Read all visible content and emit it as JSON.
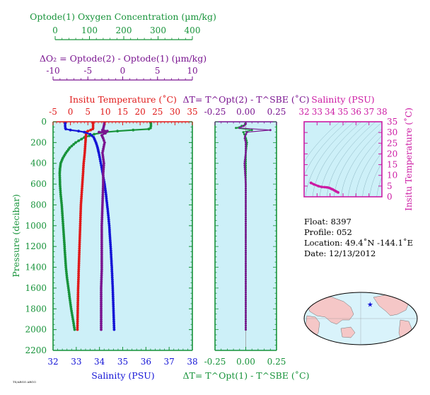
{
  "colors": {
    "green": "#17933a",
    "red": "#e01a1a",
    "blue": "#1414d6",
    "purple": "#7a1590",
    "magenta": "#cc1ba3",
    "panel_bg": "#cdf0f8",
    "land": "#f5c7c7",
    "ocean": "#d9f3fb"
  },
  "labels": {
    "oxygen_title": "Optode(1) Oxygen Concentration (µm/kg)",
    "do2_title": "ΔO₂ = Optode(2) - Optode(1)     (µm/kg)",
    "temp_title": "Insitu Temperature (˚C)",
    "dt_top_title": "ΔT= T^Opt(2) - T^SBE (˚C)",
    "dt_bottom_title": "ΔT= T^Opt(1) - T^SBE (˚C)",
    "salinity_bottom_title": "Salinity (PSU)",
    "pressure_title": "Pressure (decibar)",
    "ts_salinity_title": "Salinity (PSU)",
    "ts_temp_title": "Insitu Temperature (˚C)",
    "tiny_footer": "TS/ARGO ARGO"
  },
  "info": {
    "float": "Float:  8397",
    "profile": "Profile:  052",
    "location": "Location:  49.4˚N  -144.1˚E",
    "date": "Date:  12/13/2012"
  },
  "chart_data": [
    {
      "type": "line",
      "name": "profile-panel",
      "y_axis": {
        "label": "Pressure (decibar)",
        "range": [
          2200,
          0
        ],
        "ticks": [
          0,
          200,
          400,
          600,
          800,
          1000,
          1200,
          1400,
          1600,
          1800,
          2000,
          2200
        ]
      },
      "axes": {
        "oxygen": {
          "label": "Optode(1) Oxygen Concentration (µm/kg)",
          "range": [
            0,
            400
          ],
          "ticks": [
            0,
            100,
            200,
            300,
            400
          ]
        },
        "do2": {
          "label": "ΔO₂ = Optode(2) - Optode(1) (µm/kg)",
          "range": [
            -10,
            10
          ],
          "ticks": [
            -10,
            -5,
            0,
            5,
            10
          ]
        },
        "temperature": {
          "label": "Insitu Temperature (˚C)",
          "range": [
            -5,
            35
          ],
          "ticks": [
            -5,
            0,
            5,
            10,
            15,
            20,
            25,
            30,
            35
          ]
        },
        "salinity": {
          "label": "Salinity (PSU)",
          "range": [
            32,
            38
          ],
          "ticks": [
            32,
            33,
            34,
            35,
            36,
            37,
            38
          ]
        }
      },
      "series": [
        {
          "key": "oxygen",
          "axis": "oxygen",
          "color": "#17933a",
          "pressure": [
            5,
            20,
            40,
            60,
            70,
            80,
            90,
            100,
            120,
            150,
            200,
            250,
            300,
            350,
            400,
            450,
            500,
            600,
            700,
            800,
            900,
            1000,
            1200,
            1400,
            1500,
            1600,
            1700,
            1800,
            1900,
            2000
          ],
          "values": [
            280,
            281,
            281,
            280,
            275,
            230,
            185,
            150,
            118,
            90,
            65,
            48,
            37,
            28,
            22,
            20,
            19,
            20,
            22,
            25,
            27,
            29,
            33,
            37,
            40,
            44,
            48,
            52,
            57,
            62
          ]
        },
        {
          "key": "temperature",
          "axis": "temperature",
          "color": "#e01a1a",
          "pressure": [
            5,
            20,
            40,
            60,
            70,
            80,
            90,
            100,
            120,
            150,
            200,
            300,
            400,
            500,
            600,
            700,
            800,
            900,
            1000,
            1200,
            1400,
            1600,
            1800,
            2000
          ],
          "values": [
            6.5,
            6.5,
            6.5,
            6.5,
            6.4,
            5.8,
            5.0,
            4.6,
            4.5,
            4.4,
            4.3,
            4.1,
            3.8,
            3.6,
            3.4,
            3.2,
            3.0,
            2.9,
            2.8,
            2.6,
            2.4,
            2.2,
            2.1,
            2.0
          ]
        },
        {
          "key": "salinity",
          "axis": "salinity",
          "color": "#1414d6",
          "pressure": [
            5,
            20,
            40,
            60,
            70,
            80,
            90,
            100,
            120,
            150,
            200,
            250,
            300,
            400,
            500,
            600,
            700,
            800,
            900,
            1000,
            1200,
            1400,
            1600,
            1800,
            2000
          ],
          "values": [
            32.52,
            32.52,
            32.52,
            32.53,
            32.55,
            32.75,
            33.1,
            33.35,
            33.6,
            33.75,
            33.85,
            33.92,
            33.97,
            34.06,
            34.14,
            34.22,
            34.28,
            34.33,
            34.38,
            34.42,
            34.48,
            34.53,
            34.57,
            34.6,
            34.63
          ]
        },
        {
          "key": "do2",
          "axis": "do2",
          "color": "#7a1590",
          "pressure": [
            5,
            40,
            70,
            80,
            90,
            100,
            110,
            130,
            160,
            200,
            300,
            400,
            500,
            600,
            800,
            1000,
            1200,
            1400,
            1600,
            1800,
            2000
          ],
          "values": [
            -2.6,
            -2.7,
            -2.8,
            -2.9,
            -2.2,
            -3.4,
            -2.5,
            -3.0,
            -2.8,
            -2.6,
            -2.9,
            -2.7,
            -2.8,
            -2.8,
            -2.9,
            -3.0,
            -3.0,
            -3.0,
            -3.1,
            -3.1,
            -3.1
          ]
        }
      ]
    },
    {
      "type": "line",
      "name": "delta-t-panel",
      "x_axis": {
        "range": [
          -0.25,
          0.25
        ],
        "ticks": [
          -0.25,
          0,
          0.25
        ]
      },
      "y_axis": {
        "range": [
          2200,
          0
        ]
      },
      "series": [
        {
          "key": "dt_opt1",
          "color": "#17933a",
          "pressure": [
            5,
            30,
            60,
            80,
            100,
            150,
            200,
            300,
            400,
            600,
            800,
            1000,
            1200,
            1400,
            1600,
            1800,
            2000
          ],
          "values": [
            0.0,
            -0.01,
            -0.08,
            0.05,
            -0.02,
            0.0,
            0.01,
            0.0,
            0.0,
            0.0,
            0.0,
            0.0,
            0.0,
            0.0,
            0.0,
            0.0,
            0.0
          ]
        },
        {
          "key": "dt_opt2",
          "color": "#7a1590",
          "pressure": [
            5,
            30,
            60,
            80,
            100,
            150,
            200,
            300,
            400,
            600,
            800,
            1000,
            1200,
            1400,
            1600,
            1800,
            2000
          ],
          "values": [
            0.0,
            0.0,
            -0.05,
            0.2,
            0.01,
            -0.01,
            0.0,
            0.0,
            -0.01,
            0.0,
            0.0,
            0.0,
            0.0,
            0.0,
            0.0,
            0.0,
            0.0
          ]
        }
      ]
    },
    {
      "type": "scatter",
      "name": "ts-diagram",
      "x_axis": {
        "label": "Salinity (PSU)",
        "range": [
          32,
          38
        ],
        "ticks": [
          32,
          33,
          34,
          35,
          36,
          37,
          38
        ]
      },
      "y_axis": {
        "label": "Insitu Temperature (˚C)",
        "range": [
          0,
          35
        ],
        "ticks": [
          0,
          5,
          10,
          15,
          20,
          25,
          30,
          35
        ]
      },
      "series": [
        {
          "key": "ts",
          "color": "#cc1ba3",
          "salinity": [
            32.52,
            32.53,
            32.55,
            32.75,
            33.1,
            33.35,
            33.6,
            33.75,
            33.85,
            33.97,
            34.06,
            34.14,
            34.22,
            34.33,
            34.42,
            34.5,
            34.6,
            34.63
          ],
          "temperature": [
            6.5,
            6.5,
            6.4,
            5.8,
            5.0,
            4.6,
            4.5,
            4.4,
            4.3,
            4.1,
            3.8,
            3.6,
            3.4,
            3.0,
            2.7,
            2.4,
            2.1,
            2.0
          ]
        }
      ]
    },
    {
      "type": "map",
      "name": "location-map",
      "marker": {
        "lat": 49.4,
        "lon": -144.1,
        "color": "#1414d6"
      }
    }
  ]
}
